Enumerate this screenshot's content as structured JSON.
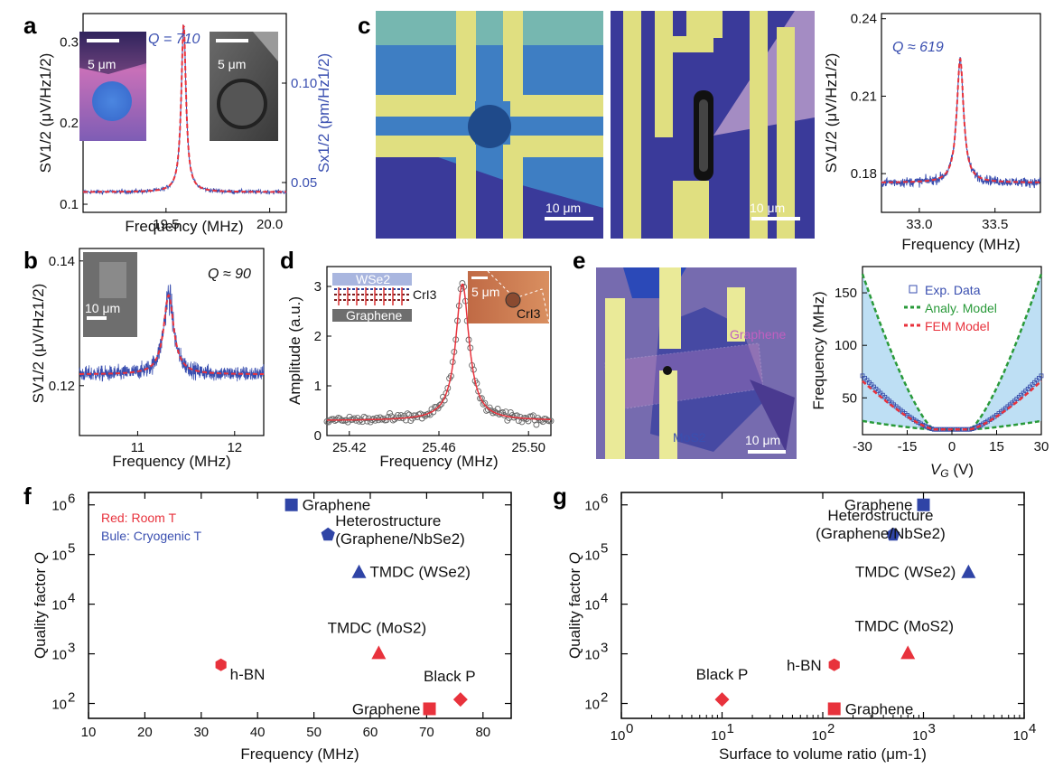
{
  "panel_labels": [
    "a",
    "b",
    "c",
    "d",
    "e",
    "f",
    "g"
  ],
  "scale_bars": {
    "a_left": "5 μm",
    "a_right": "5 μm",
    "b": "10 μm",
    "c_left": "10 μm",
    "c_mid": "10 μm",
    "d": "5 μm",
    "e": "10 μm"
  },
  "image_labels": {
    "d_top_layer": "WSe2",
    "d_mid_layer": "CrI3",
    "d_bottom_layer": "Graphene",
    "d_photo_label": "CrI3",
    "e_graphene": "Graphene",
    "e_mos2": "MoS2"
  },
  "colors": {
    "data_blue": "#3a4fb0",
    "fit_red": "#e8323c",
    "green_dash": "#2a9a3a",
    "band_fill": "#a8d4f0",
    "point_red": "#e8323c",
    "point_blue": "#2f44a6"
  },
  "chart_data": [
    {
      "id": "a",
      "type": "line",
      "title": "",
      "annotation": "Q = 710",
      "xlabel": "Frequency (MHz)",
      "ylabel": "SV1/2 (μV/Hz1/2)",
      "ylabel_right": "Sx1/2 (pm/Hz1/2)",
      "xlim": [
        19.1,
        20.08
      ],
      "ylim": [
        0.09,
        0.335
      ],
      "xticks": [
        19.5,
        20.0
      ],
      "xtick_labels": [
        "19.5",
        "20.0"
      ],
      "yticks": [
        0.1,
        0.2,
        0.3
      ],
      "ytick_labels": [
        "0.1",
        "0.2",
        "0.3"
      ],
      "right_ticks": [
        0.05,
        0.1
      ],
      "right_tick_labels": [
        "0.05",
        "0.10"
      ],
      "resonance": {
        "f0": 19.585,
        "baseline": 0.115,
        "peak": 0.322,
        "gamma": 0.0138
      },
      "series": [
        {
          "name": "data",
          "color": "blue"
        },
        {
          "name": "fit",
          "color": "red",
          "style": "dashed"
        }
      ]
    },
    {
      "id": "b",
      "type": "line",
      "annotation": "Q ≈ 90",
      "xlabel": "Frequency (MHz)",
      "ylabel": "SV1/2 (μV/Hz1/2)",
      "xlim": [
        10.4,
        12.3
      ],
      "ylim": [
        0.112,
        0.142
      ],
      "xticks": [
        11,
        12
      ],
      "xtick_labels": [
        "11",
        "12"
      ],
      "yticks": [
        0.12,
        0.14
      ],
      "ytick_labels": [
        "0.12",
        "0.14"
      ],
      "resonance": {
        "f0": 11.32,
        "baseline": 0.1218,
        "peak": 0.1345,
        "gamma": 0.063
      },
      "series": [
        {
          "name": "data",
          "color": "blue"
        },
        {
          "name": "fit",
          "color": "red",
          "style": "dashed"
        }
      ]
    },
    {
      "id": "c",
      "type": "line",
      "annotation": "Q ≈ 619",
      "xlabel": "Frequency (MHz)",
      "ylabel": "SV1/2 (μV/Hz1/2)",
      "xlim": [
        32.75,
        33.8
      ],
      "ylim": [
        0.165,
        0.242
      ],
      "xticks": [
        33.0,
        33.5
      ],
      "xtick_labels": [
        "33.0",
        "33.5"
      ],
      "yticks": [
        0.18,
        0.21,
        0.24
      ],
      "ytick_labels": [
        "0.18",
        "0.21",
        "0.24"
      ],
      "resonance": {
        "f0": 33.27,
        "baseline": 0.1765,
        "peak": 0.2245,
        "gamma": 0.027
      },
      "series": [
        {
          "name": "data",
          "color": "blue"
        },
        {
          "name": "fit",
          "color": "red",
          "style": "dashed"
        }
      ]
    },
    {
      "id": "d",
      "type": "scatter",
      "xlabel": "Frequency (MHz)",
      "ylabel": "Amplitude (a.u.)",
      "xlim": [
        25.41,
        25.51
      ],
      "ylim": [
        0,
        3.4
      ],
      "xticks": [
        25.42,
        25.46,
        25.5
      ],
      "xtick_labels": [
        "25.42",
        "25.46",
        "25.50"
      ],
      "yticks": [
        0,
        1,
        2,
        3
      ],
      "ytick_labels": [
        "0",
        "1",
        "2",
        "3"
      ],
      "resonance": {
        "f0": 25.4705,
        "baseline": 0.3,
        "peak": 3.05,
        "gamma": 0.0036
      },
      "series": [
        {
          "name": "data",
          "marker": "open-circle"
        },
        {
          "name": "fit",
          "color": "red",
          "style": "solid"
        }
      ]
    },
    {
      "id": "e",
      "type": "line",
      "xlabel": "VG (V)",
      "ylabel": "Frequency (MHz)",
      "xlim": [
        -30,
        30
      ],
      "ylim": [
        15,
        175
      ],
      "xticks": [
        -30,
        -15,
        0,
        15,
        30
      ],
      "xtick_labels": [
        "-30",
        "-15",
        "0",
        "15",
        "30"
      ],
      "yticks": [
        50,
        100,
        150
      ],
      "ytick_labels": [
        "50",
        "100",
        "150"
      ],
      "legend": [
        "Exp. Data",
        "Analy. Model",
        "FEM Model"
      ],
      "legend_position": "top-right",
      "curves": {
        "f0": 20,
        "flat_v": 6,
        "exp_at_30": 71,
        "fem_at_30": 66,
        "upper_at_30": 168,
        "lower_at_30": 28
      }
    },
    {
      "id": "f",
      "type": "scatter",
      "xlabel": "Frequency (MHz)",
      "ylabel": "Quality factor Q",
      "xlim": [
        10,
        85
      ],
      "ylim_log10": [
        1.7,
        6.25
      ],
      "xticks": [
        10,
        20,
        30,
        40,
        50,
        60,
        70,
        80
      ],
      "xtick_labels": [
        "10",
        "20",
        "30",
        "40",
        "50",
        "60",
        "70",
        "80"
      ],
      "yticks_log10": [
        2,
        3,
        4,
        5,
        6
      ],
      "ytick_base": "10",
      "ytick_exponents": [
        "2",
        "3",
        "4",
        "5",
        "6"
      ],
      "legend": [
        "Red: Room T",
        "Bule: Cryogenic T"
      ],
      "legend_position": "top-left",
      "points": [
        {
          "label": "Graphene",
          "x": 46,
          "q": 1000000,
          "marker": "square",
          "color": "blue"
        },
        {
          "label": "Heterostructure",
          "label2": "(Graphene/NbSe2)",
          "x": 52.5,
          "q": 250000,
          "marker": "pentagon",
          "color": "blue"
        },
        {
          "label": "TMDC (WSe2)",
          "x": 58,
          "q": 45000,
          "marker": "triangle",
          "color": "blue"
        },
        {
          "label": "TMDC (MoS2)",
          "x": 61.5,
          "q": 1050,
          "marker": "triangle",
          "color": "red"
        },
        {
          "label": "h-BN",
          "x": 33.5,
          "q": 600,
          "marker": "hexagon",
          "color": "red"
        },
        {
          "label": "Black P",
          "x": 76,
          "q": 120,
          "marker": "diamond",
          "color": "red"
        },
        {
          "label": "Graphene",
          "x": 70.5,
          "q": 78,
          "marker": "square",
          "color": "red"
        }
      ]
    },
    {
      "id": "g",
      "type": "scatter",
      "xlabel": "Surface to volume ratio (μm-1)",
      "ylabel": "Quality factor Q",
      "xscale": "log",
      "xlim_log10": [
        0,
        4
      ],
      "ylim_log10": [
        1.7,
        6.25
      ],
      "xticks_log10": [
        0,
        1,
        2,
        3,
        4
      ],
      "xtick_base": "10",
      "xtick_exponents": [
        "0",
        "1",
        "2",
        "3",
        "4"
      ],
      "yticks_log10": [
        2,
        3,
        4,
        5,
        6
      ],
      "ytick_base": "10",
      "ytick_exponents": [
        "2",
        "3",
        "4",
        "5",
        "6"
      ],
      "points": [
        {
          "label": "Graphene",
          "x": 1000,
          "q": 1000000,
          "marker": "square",
          "color": "blue"
        },
        {
          "label": "Heterostructure",
          "label2": "(Graphene/NbSe2)",
          "x": 500,
          "q": 250000,
          "marker": "pentagon",
          "color": "blue"
        },
        {
          "label": "TMDC (WSe2)",
          "x": 2800,
          "q": 45000,
          "marker": "triangle",
          "color": "blue"
        },
        {
          "label": "TMDC (MoS2)",
          "x": 700,
          "q": 1050,
          "marker": "triangle",
          "color": "red"
        },
        {
          "label": "h-BN",
          "x": 130,
          "q": 600,
          "marker": "hexagon",
          "color": "red"
        },
        {
          "label": "Black P",
          "x": 10,
          "q": 120,
          "marker": "diamond",
          "color": "red"
        },
        {
          "label": "Graphene",
          "x": 130,
          "q": 78,
          "marker": "square",
          "color": "red"
        }
      ]
    }
  ]
}
